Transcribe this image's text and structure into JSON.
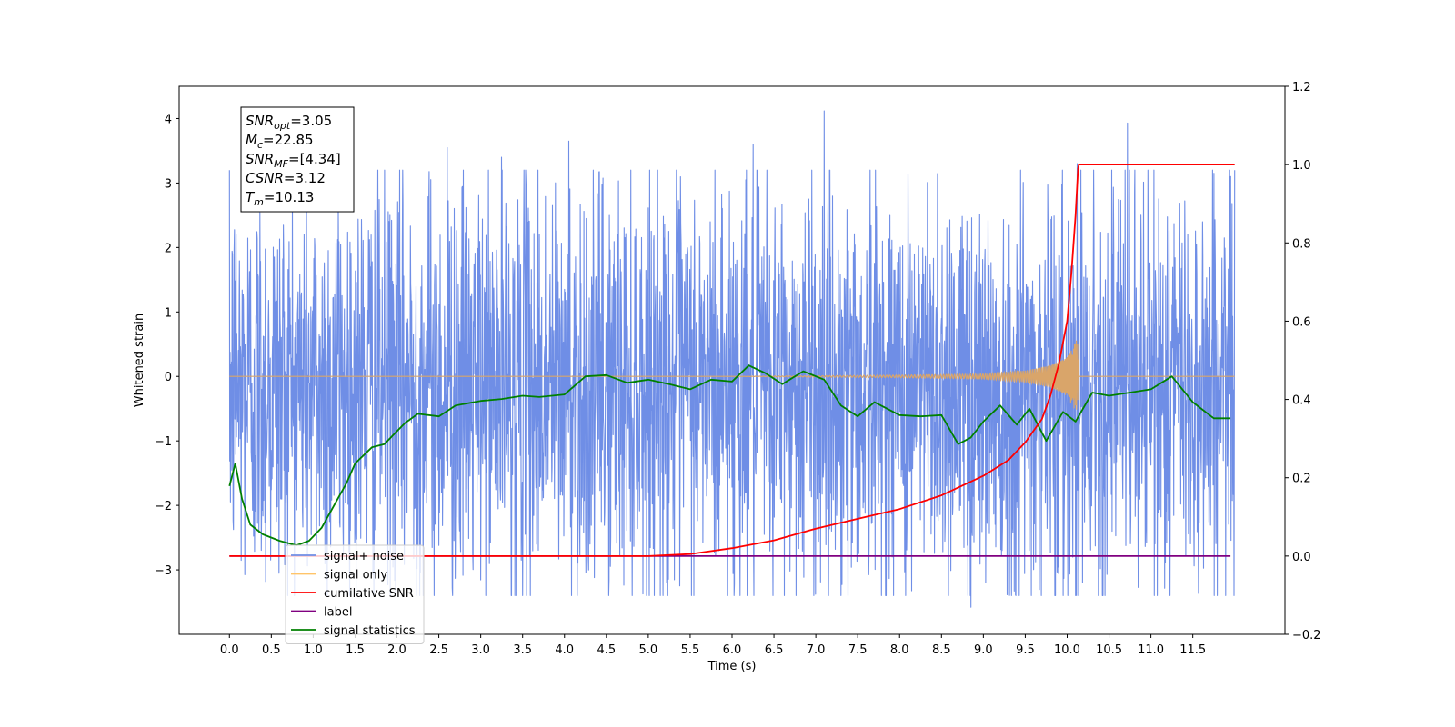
{
  "chart_data": {
    "type": "line",
    "xlabel": "Time (s)",
    "ylabel_left": "Whitened strain",
    "ylabel_right": "",
    "xlim": [
      -0.6,
      12.6
    ],
    "ylim_left": [
      -4.0,
      4.5
    ],
    "ylim_right": [
      -0.2,
      1.2
    ],
    "x_ticks": [
      0.0,
      0.5,
      1.0,
      1.5,
      2.0,
      2.5,
      3.0,
      3.5,
      4.0,
      4.5,
      5.0,
      5.5,
      6.0,
      6.5,
      7.0,
      7.5,
      8.0,
      8.5,
      9.0,
      9.5,
      10.0,
      10.5,
      11.0,
      11.5
    ],
    "x_tick_labels": [
      "0.0",
      "0.5",
      "1.0",
      "1.5",
      "2.0",
      "2.5",
      "3.0",
      "3.5",
      "4.0",
      "4.5",
      "5.0",
      "5.5",
      "6.0",
      "6.5",
      "7.0",
      "7.5",
      "8.0",
      "8.5",
      "9.0",
      "9.5",
      "10.0",
      "10.5",
      "11.0",
      "11.5"
    ],
    "y_left_ticks": [
      -3,
      -2,
      -1,
      0,
      1,
      2,
      3,
      4
    ],
    "y_left_tick_labels": [
      "−3",
      "−2",
      "−1",
      "0",
      "1",
      "2",
      "3",
      "4"
    ],
    "y_right_ticks": [
      -0.2,
      0.0,
      0.2,
      0.4,
      0.6,
      0.8,
      1.0,
      1.2
    ],
    "y_right_tick_labels": [
      "−0.2",
      "0.0",
      "0.2",
      "0.4",
      "0.6",
      "0.8",
      "1.0",
      "1.2"
    ],
    "grid": false,
    "legend_position": "bottom-left",
    "series": [
      {
        "name": "signal+ noise",
        "axis": "left",
        "color": "#6f8ee6",
        "kind": "noise",
        "x_range": [
          0.0,
          12.0
        ],
        "sample_spacing": 0.004,
        "typical_range": [
          -2.8,
          2.5
        ],
        "x_peaks": [
          0.08,
          1.3,
          2.6,
          3.25,
          4.05,
          6.25,
          7.1,
          8.85,
          9.95,
          10.12,
          10.72,
          11.95
        ],
        "y_peaks": [
          2.2,
          2.6,
          3.55,
          3.4,
          3.65,
          3.6,
          4.12,
          -3.58,
          -3.4,
          3.3,
          3.93,
          3.1
        ]
      },
      {
        "name": "signal only",
        "axis": "left",
        "color": "#d9a56a",
        "kind": "chirp",
        "x_range": [
          0.0,
          12.0
        ],
        "envelope_x": [
          0.0,
          6.0,
          8.0,
          9.0,
          9.5,
          9.8,
          10.0,
          10.1,
          10.13,
          10.14,
          12.0
        ],
        "envelope_y": [
          0.0,
          0.0,
          0.02,
          0.04,
          0.09,
          0.17,
          0.3,
          0.55,
          0.6,
          0.0,
          0.0
        ]
      },
      {
        "name": "cumilative SNR",
        "axis": "right",
        "color": "#ff0000",
        "x": [
          0.0,
          5.0,
          5.5,
          6.0,
          6.5,
          7.0,
          7.5,
          8.0,
          8.5,
          9.0,
          9.3,
          9.5,
          9.7,
          9.8,
          9.9,
          10.0,
          10.05,
          10.1,
          10.13,
          10.14,
          11.0,
          12.0
        ],
        "y": [
          0.0,
          0.0,
          0.005,
          0.02,
          0.04,
          0.07,
          0.095,
          0.12,
          0.155,
          0.205,
          0.245,
          0.29,
          0.35,
          0.41,
          0.49,
          0.6,
          0.72,
          0.87,
          0.99,
          1.0,
          1.0,
          1.0
        ]
      },
      {
        "name": "label",
        "axis": "right",
        "color": "#800080",
        "x": [
          0.0,
          11.95
        ],
        "y": [
          0.0,
          0.0
        ]
      },
      {
        "name": "signal statistics",
        "axis": "left",
        "color": "#008000",
        "x": [
          0.0,
          0.07,
          0.15,
          0.25,
          0.4,
          0.6,
          0.8,
          0.95,
          1.1,
          1.25,
          1.4,
          1.5,
          1.7,
          1.85,
          2.0,
          2.1,
          2.25,
          2.5,
          2.7,
          3.0,
          3.25,
          3.5,
          3.7,
          4.0,
          4.25,
          4.5,
          4.75,
          5.0,
          5.25,
          5.5,
          5.75,
          6.0,
          6.2,
          6.4,
          6.6,
          6.85,
          7.1,
          7.3,
          7.5,
          7.7,
          8.0,
          8.25,
          8.5,
          8.7,
          8.85,
          9.0,
          9.2,
          9.4,
          9.55,
          9.75,
          9.95,
          10.1,
          10.3,
          10.5,
          10.75,
          11.0,
          11.25,
          11.5,
          11.75,
          11.95
        ],
        "y": [
          -1.7,
          -1.35,
          -1.9,
          -2.3,
          -2.45,
          -2.55,
          -2.62,
          -2.55,
          -2.35,
          -2.0,
          -1.65,
          -1.35,
          -1.1,
          -1.05,
          -0.85,
          -0.72,
          -0.58,
          -0.62,
          -0.45,
          -0.38,
          -0.35,
          -0.3,
          -0.32,
          -0.28,
          0.0,
          0.02,
          -0.1,
          -0.05,
          -0.12,
          -0.2,
          -0.05,
          -0.08,
          0.17,
          0.05,
          -0.12,
          0.08,
          -0.05,
          -0.45,
          -0.62,
          -0.4,
          -0.6,
          -0.62,
          -0.6,
          -1.05,
          -0.95,
          -0.7,
          -0.45,
          -0.75,
          -0.5,
          -1.0,
          -0.55,
          -0.7,
          -0.25,
          -0.3,
          -0.25,
          -0.2,
          0.0,
          -0.4,
          -0.65,
          -0.65
        ]
      }
    ],
    "annotation": {
      "snr_opt": {
        "name": "SNR",
        "sub": "opt",
        "value": "=3.05"
      },
      "mc": {
        "name": "M",
        "sub": "c",
        "value": "=22.85"
      },
      "snr_mf": {
        "name": "SNR",
        "sub": "MF",
        "value": "=[4.34]"
      },
      "csnr": {
        "name": "CSNR",
        "value": "=3.12"
      },
      "tm": {
        "name": "T",
        "sub": "m",
        "value": "=10.13"
      }
    },
    "legend": [
      {
        "label": "signal+ noise",
        "color": "#6f8ee6"
      },
      {
        "label": "signal only",
        "color": "#ffc469"
      },
      {
        "label": "cumilative SNR",
        "color": "#ff0000"
      },
      {
        "label": "label",
        "color": "#800080"
      },
      {
        "label": "signal statistics",
        "color": "#008000"
      }
    ]
  }
}
